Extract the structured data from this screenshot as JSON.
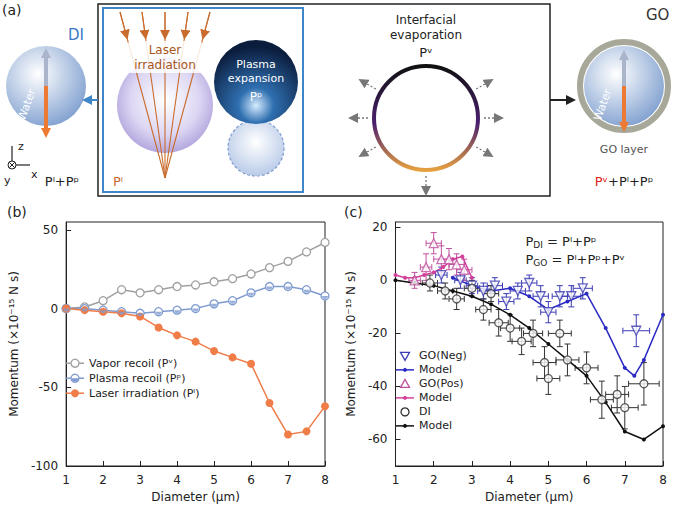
{
  "diagram": {
    "panel_label": "(a)",
    "left": {
      "label": "DI",
      "inner": "Water",
      "momentum": "Pˡ+Pᵖ"
    },
    "axes": [
      "z",
      "x",
      "y"
    ],
    "mechanisms": [
      {
        "title": "Laser irradiation",
        "symbol": "Pˡ"
      },
      {
        "title": "Plasma expansion",
        "symbol": "Pᵖ"
      },
      {
        "title": "Interfacial evaporation",
        "symbol": "Pᵛ"
      }
    ],
    "right": {
      "label": "GO",
      "inner": "Water",
      "shell": "GO layer",
      "momentum": [
        "Pᵛ",
        "+Pˡ+Pᵖ"
      ]
    }
  },
  "chart_data": [
    {
      "type": "line",
      "title": "(b)",
      "x_label": "Diameter (μm)",
      "y_label": "Momentum (×10⁻¹⁵ N s)",
      "xlim": [
        1,
        8
      ],
      "xticks": [
        1,
        2,
        3,
        4,
        5,
        6,
        7,
        8
      ],
      "ylim": [
        -100,
        55
      ],
      "yticks": [
        -100,
        -50,
        0,
        50
      ],
      "grid": false,
      "legend": "left",
      "x": [
        1,
        1.5,
        2,
        2.5,
        3,
        3.5,
        4,
        4.5,
        5,
        5.5,
        6,
        6.5,
        7,
        7.5,
        8
      ],
      "series": [
        {
          "name": "Vapor recoil (Pᵛ)",
          "color": "#a0a0a0",
          "marker": "open_circle",
          "values": [
            0,
            1,
            5,
            12,
            10,
            12,
            14,
            15,
            17,
            19,
            22,
            26,
            30,
            36,
            42
          ]
        },
        {
          "name": "Plasma recoil (Pᵖ)",
          "color": "#7f9bd0",
          "marker": "half_circle",
          "values": [
            0,
            0,
            -1,
            -2,
            -3,
            -2,
            -1,
            0,
            3,
            5,
            10,
            14,
            14,
            12,
            8
          ]
        },
        {
          "name": "Laser irradiation (Pˡ)",
          "color": "#f07c48",
          "marker": "circle",
          "values": [
            0,
            -1,
            -2,
            -3,
            -5,
            -12,
            -17,
            -21,
            -27,
            -31,
            -35,
            -60,
            -80,
            -78,
            -62
          ]
        }
      ]
    },
    {
      "type": "scatter",
      "title": "(c)",
      "x_label": "Diameter (μm)",
      "y_label": "Momentum (×10⁻¹⁵ N s)",
      "xlim": [
        1,
        8
      ],
      "xticks": [
        1,
        2,
        3,
        4,
        5,
        6,
        7,
        8
      ],
      "ylim": [
        -70,
        22
      ],
      "yticks": [
        -60,
        -40,
        -20,
        0,
        20
      ],
      "grid": false,
      "legend": "lower left",
      "annotations": [
        {
          "symbol": "P",
          "subscript": "DI",
          "text": "= Pˡ+Pᵖ"
        },
        {
          "symbol": "P",
          "subscript": "GO",
          "text": "= Pˡ+Pᵖ+Pᵛ"
        }
      ],
      "series": [
        {
          "name": "GO(Neg)",
          "type": "scatter",
          "color": "#3c3cb4",
          "marker": "triangle_down",
          "x": [
            2.2,
            2.7,
            3.0,
            3.3,
            3.6,
            3.9,
            4.2,
            4.5,
            4.8,
            5.0,
            5.3,
            5.6,
            5.9,
            7.3
          ],
          "values": [
            2,
            0,
            -2,
            -4,
            -2,
            -8,
            -4,
            -1,
            -6,
            -12,
            -6,
            -6,
            -3,
            -19
          ],
          "x_errors": [
            0.15,
            0.15,
            0.15,
            0.15,
            0.2,
            0.2,
            0.2,
            0.2,
            0.2,
            0.2,
            0.2,
            0.25,
            0.25,
            0.35
          ],
          "y_errors": [
            3,
            3,
            3,
            3,
            3,
            3,
            3,
            3,
            4,
            4,
            4,
            4,
            4,
            6
          ]
        },
        {
          "name": "Model",
          "type": "line",
          "color": "#2b2bc4",
          "marker": "dot",
          "x": [
            2.5,
            3,
            3.5,
            4,
            4.5,
            5,
            5.5,
            6,
            6.5,
            7,
            7.25,
            7.5,
            8
          ],
          "values": [
            1,
            -2,
            -4,
            -3,
            -6,
            -11,
            -8,
            -5,
            -18,
            -33,
            -36,
            -30,
            -13
          ]
        },
        {
          "name": "GO(Pos)",
          "type": "scatter",
          "color": "#c0509e",
          "marker": "triangle_up",
          "x": [
            1.5,
            1.8,
            2.0,
            2.2,
            2.4,
            2.6,
            2.8
          ],
          "values": [
            0,
            5,
            14,
            8,
            8,
            6,
            4
          ],
          "x_errors": [
            0.15,
            0.15,
            0.2,
            0.2,
            0.2,
            0.2,
            0.2
          ],
          "y_errors": [
            3,
            5,
            4,
            5,
            4,
            4,
            4
          ]
        },
        {
          "name": "Model",
          "type": "line",
          "color": "#d2409a",
          "marker": "dot",
          "x": [
            1,
            1.25,
            1.5,
            1.75,
            2,
            2.25,
            2.5,
            2.75,
            3
          ],
          "values": [
            2,
            1,
            1,
            2,
            3,
            5,
            8,
            9,
            1
          ]
        },
        {
          "name": "DI",
          "type": "scatter",
          "color": "#333333",
          "marker": "open_circle",
          "x": [
            1.9,
            2.3,
            2.6,
            3.0,
            3.3,
            3.5,
            3.7,
            4.0,
            4.3,
            4.6,
            4.9,
            5.0,
            5.3,
            5.5,
            6.0,
            6.4,
            6.8,
            7.0,
            7.5
          ],
          "values": [
            -1,
            -4,
            -7,
            -3,
            -11,
            -5,
            -16,
            -18,
            -23,
            -20,
            -31,
            -37,
            -20,
            -30,
            -33,
            -45,
            -43,
            -48,
            -39
          ],
          "x_errors": [
            0.2,
            0.2,
            0.2,
            0.2,
            0.2,
            0.2,
            0.25,
            0.25,
            0.25,
            0.25,
            0.3,
            0.3,
            0.3,
            0.3,
            0.3,
            0.3,
            0.3,
            0.35,
            0.4
          ],
          "y_errors": [
            3,
            3,
            4,
            3,
            4,
            3,
            5,
            5,
            5,
            5,
            6,
            6,
            5,
            6,
            6,
            7,
            7,
            8,
            8
          ]
        },
        {
          "name": "Model",
          "type": "line",
          "color": "#111111",
          "marker": "dot",
          "x": [
            1,
            1.5,
            2,
            2.5,
            3,
            3.5,
            4,
            4.5,
            5,
            5.5,
            6,
            6.5,
            7,
            7.5,
            8
          ],
          "values": [
            0,
            -1,
            -2,
            -4,
            -6,
            -9,
            -13,
            -18,
            -24,
            -30,
            -36,
            -46,
            -57,
            -60,
            -55
          ]
        }
      ]
    }
  ]
}
